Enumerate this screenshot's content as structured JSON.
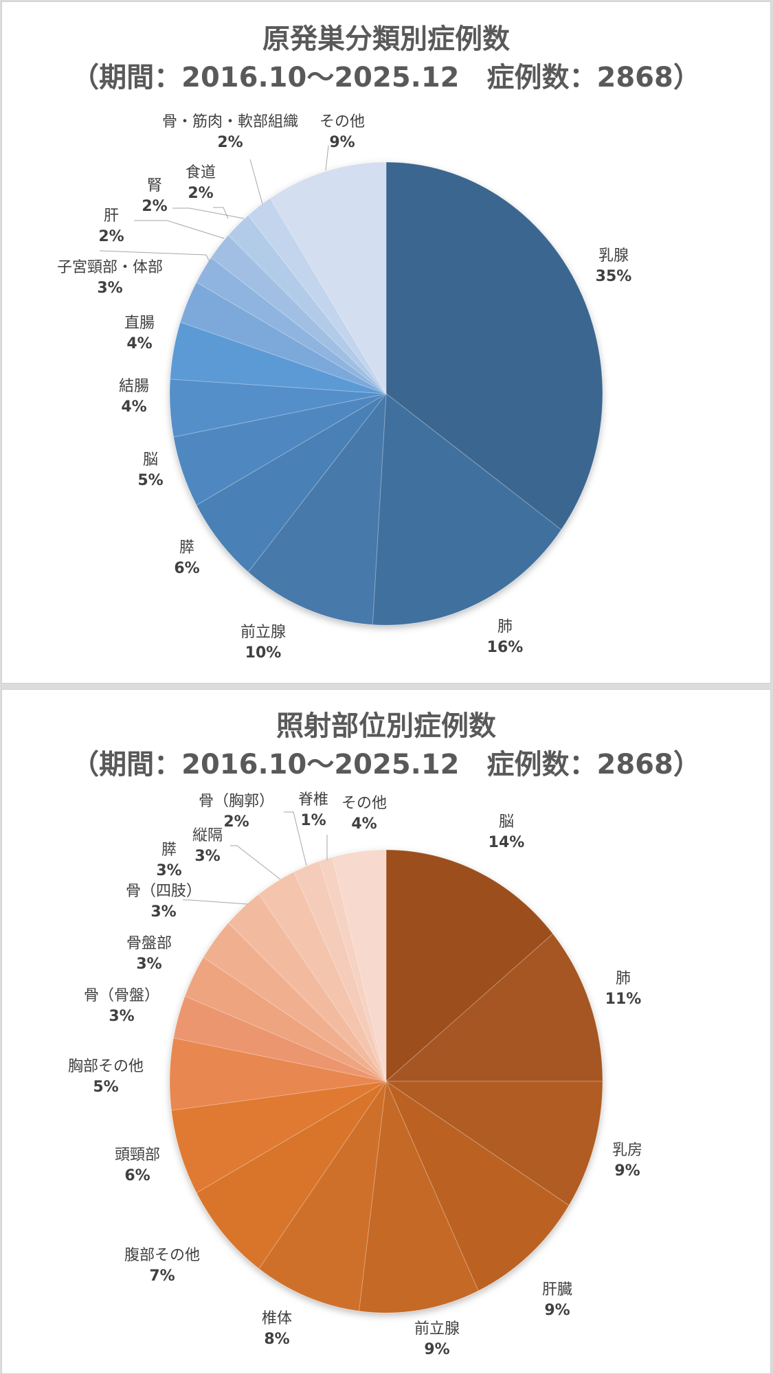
{
  "charts": [
    {
      "title_line1": "原発巣分類別症例数",
      "title_line2": "（期間：2016.10～2025.12　症例数：2868）",
      "labels": [
        {
          "name": "乳腺",
          "pct": "35%"
        },
        {
          "name": "肺",
          "pct": "16%"
        },
        {
          "name": "前立腺",
          "pct": "10%"
        },
        {
          "name": "膵",
          "pct": "6%"
        },
        {
          "name": "脳",
          "pct": "5%"
        },
        {
          "name": "結腸",
          "pct": "4%"
        },
        {
          "name": "直腸",
          "pct": "4%"
        },
        {
          "name": "子宮頸部・体部",
          "pct": "3%"
        },
        {
          "name": "肝",
          "pct": "2%"
        },
        {
          "name": "腎",
          "pct": "2%"
        },
        {
          "name": "食道",
          "pct": "2%"
        },
        {
          "name": "骨・筋肉・軟部組織",
          "pct": "2%"
        },
        {
          "name": "その他",
          "pct": "9%"
        }
      ]
    },
    {
      "title_line1": "照射部位別症例数",
      "title_line2": "（期間：2016.10～2025.12　症例数：2868）",
      "labels": [
        {
          "name": "脳",
          "pct": "14%"
        },
        {
          "name": "肺",
          "pct": "11%"
        },
        {
          "name": "乳房",
          "pct": "9%"
        },
        {
          "name": "肝臓",
          "pct": "9%"
        },
        {
          "name": "前立腺",
          "pct": "9%"
        },
        {
          "name": "椎体",
          "pct": "8%"
        },
        {
          "name": "腹部その他",
          "pct": "7%"
        },
        {
          "name": "頭頸部",
          "pct": "6%"
        },
        {
          "name": "胸部その他",
          "pct": "5%"
        },
        {
          "name": "骨（骨盤）",
          "pct": "3%"
        },
        {
          "name": "骨盤部",
          "pct": "3%"
        },
        {
          "name": "骨（四肢）",
          "pct": "3%"
        },
        {
          "name": "膵",
          "pct": "3%"
        },
        {
          "name": "縦隔",
          "pct": "3%"
        },
        {
          "name": "骨（胸郭）",
          "pct": "2%"
        },
        {
          "name": "脊椎",
          "pct": "1%"
        },
        {
          "name": "その他",
          "pct": "4%"
        }
      ]
    }
  ],
  "chart_data": [
    {
      "type": "pie",
      "title": "原発巣分類別症例数（期間：2016.10～2025.12　症例数：2868）",
      "categories": [
        "乳腺",
        "肺",
        "前立腺",
        "膵",
        "脳",
        "結腸",
        "直腸",
        "子宮頸部・体部",
        "肝",
        "腎",
        "食道",
        "骨・筋肉・軟部組織",
        "その他"
      ],
      "values": [
        35,
        16,
        10,
        6,
        5,
        4,
        4,
        3,
        2,
        2,
        2,
        2,
        9
      ],
      "unit": "%",
      "colors": [
        "#3b668f",
        "#40709e",
        "#4679aa",
        "#4a80b5",
        "#4f88c0",
        "#548fca",
        "#5b9ad6",
        "#7ba9da",
        "#8fb4df",
        "#a0bfe3",
        "#b2cbe8",
        "#c3d5ed",
        "#d3dff0"
      ],
      "start_angle_deg": 0,
      "direction": "clockwise"
    },
    {
      "type": "pie",
      "title": "照射部位別症例数（期間：2016.10～2025.12　症例数：2868）",
      "categories": [
        "脳",
        "肺",
        "乳房",
        "肝臓",
        "前立腺",
        "椎体",
        "腹部その他",
        "頭頸部",
        "胸部その他",
        "骨（骨盤）",
        "骨盤部",
        "骨（四肢）",
        "膵",
        "縦隔",
        "骨（胸郭）",
        "脊椎",
        "その他"
      ],
      "values": [
        14,
        11,
        9,
        9,
        9,
        8,
        7,
        6,
        5,
        3,
        3,
        3,
        3,
        3,
        2,
        1,
        4
      ],
      "unit": "%",
      "colors": [
        "#9c4f1f",
        "#a65620",
        "#b05c22",
        "#bb6224",
        "#c56926",
        "#cf6f29",
        "#d8742b",
        "#e07a31",
        "#e8874f",
        "#ec9670",
        "#eea47f",
        "#f0b08f",
        "#f2bb9f",
        "#f4c4ad",
        "#f5ccb9",
        "#f6d2c2",
        "#f7d9cd"
      ],
      "start_angle_deg": 0,
      "direction": "clockwise"
    }
  ]
}
